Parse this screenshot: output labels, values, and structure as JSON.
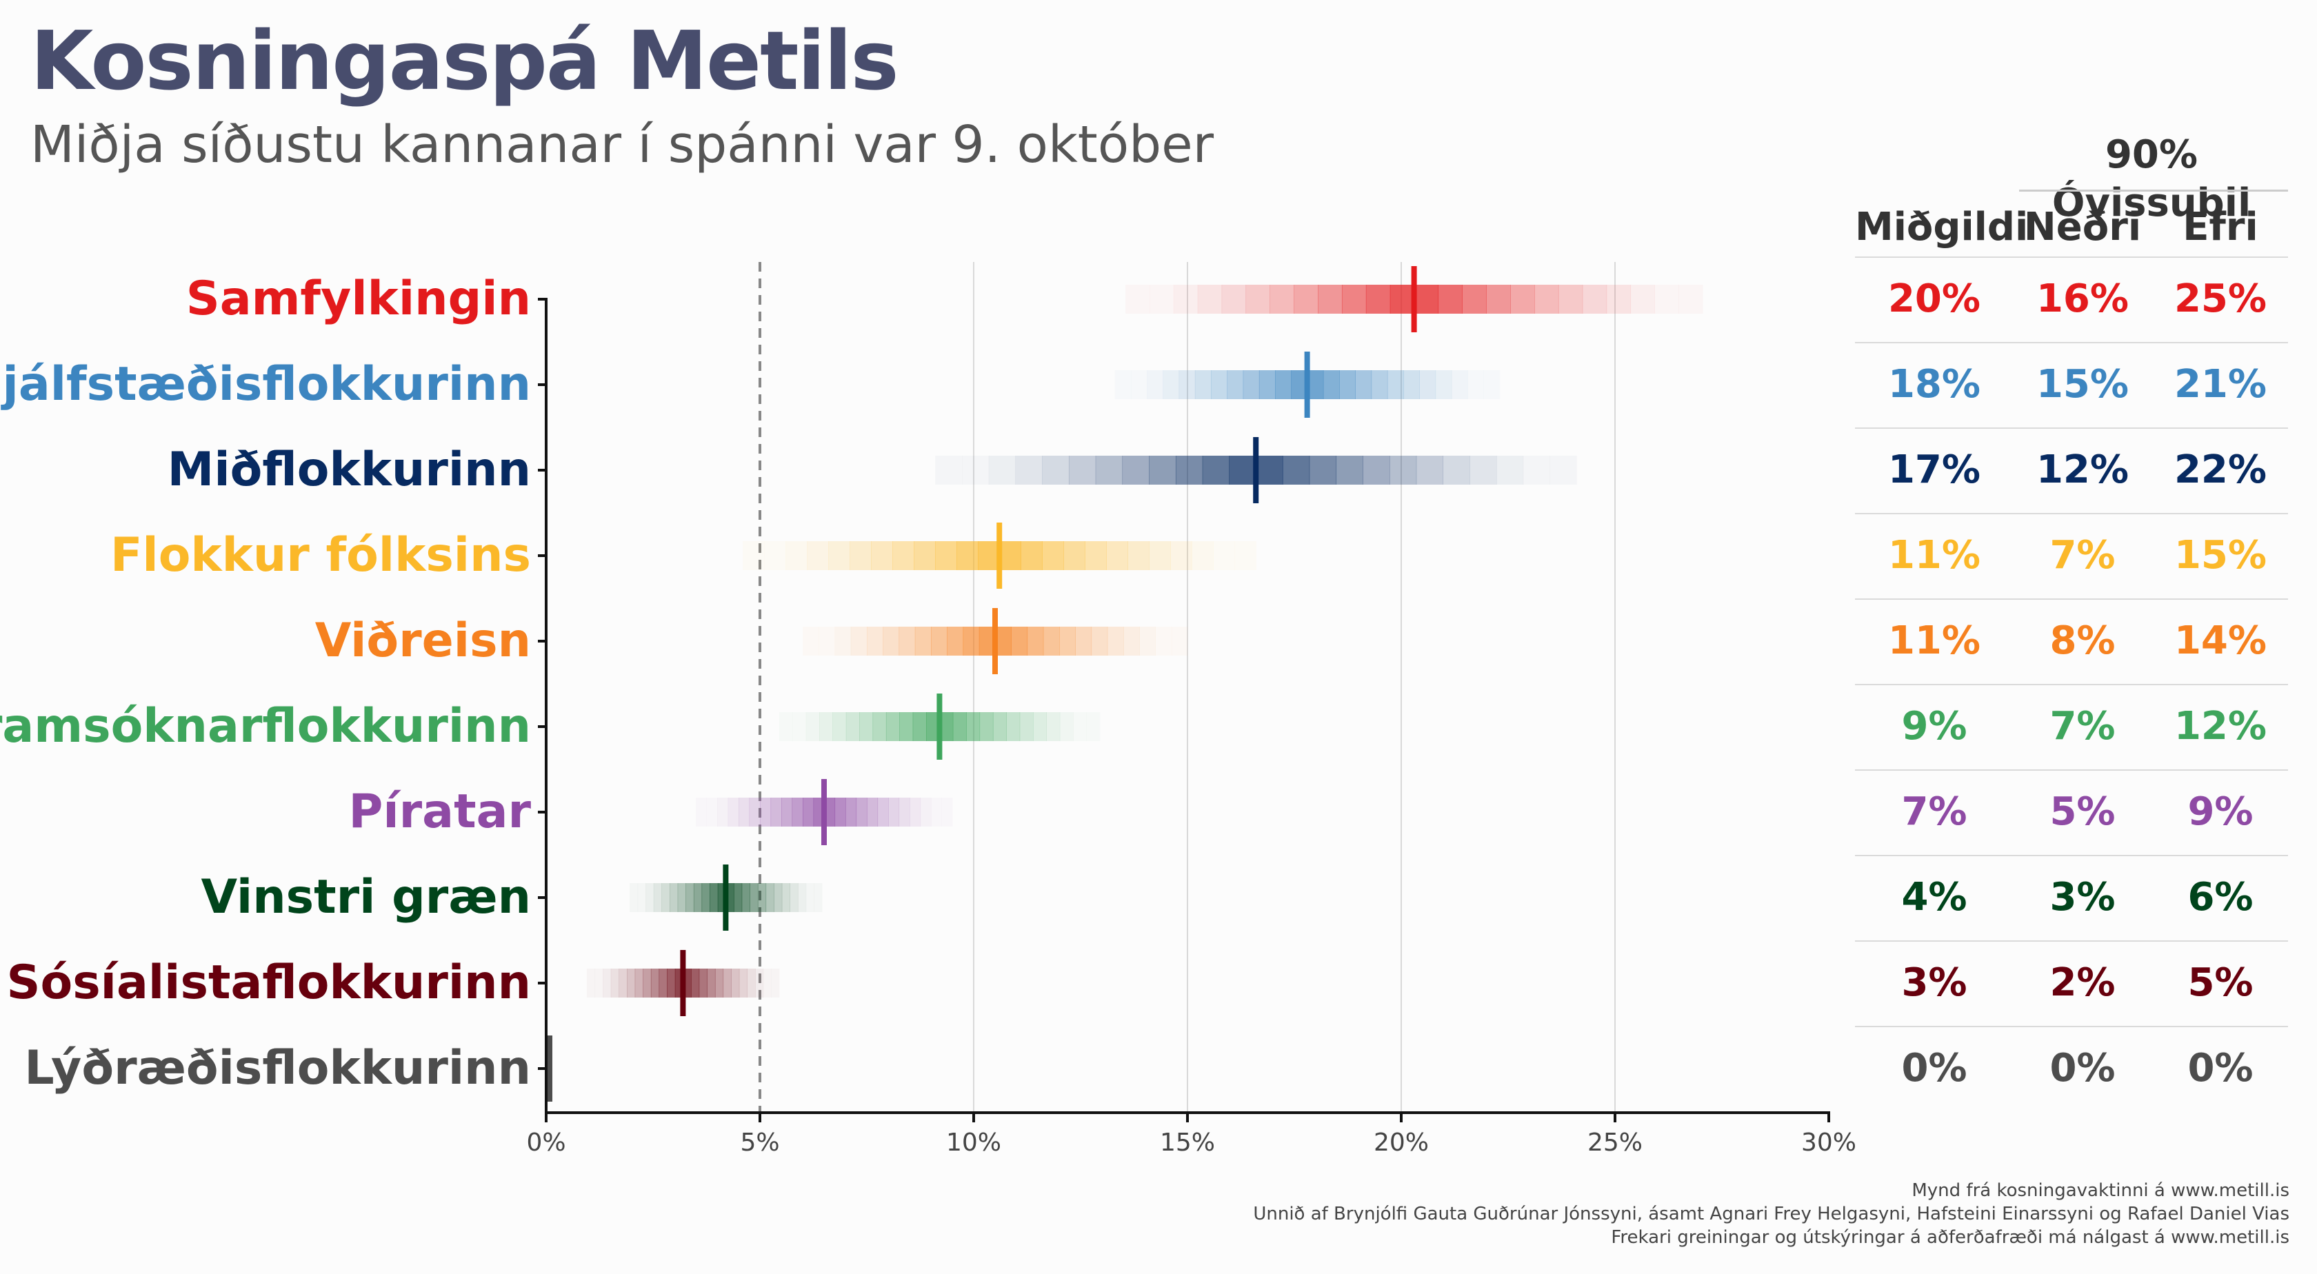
{
  "title": "Kosningaspá Metils",
  "subtitle": "Miðja síðustu kannanar í spánni var 9. október",
  "table": {
    "group_header": "90% Óvissubil",
    "col_median": "Miðgildi",
    "col_lower": "Neðri",
    "col_upper": "Efri"
  },
  "chart_data": {
    "type": "interval",
    "title": "Kosningaspá Metils",
    "xlim": [
      0,
      30
    ],
    "x_ticks": [
      "0%",
      "5%",
      "10%",
      "15%",
      "20%",
      "25%",
      "30%"
    ],
    "threshold": 5,
    "series": [
      {
        "name": "Samfylkingin",
        "color": "#e31a1c",
        "median": 20.3,
        "lower": 16,
        "upper": 25,
        "median_label": "20%",
        "lower_label": "16%",
        "upper_label": "25%"
      },
      {
        "name": "Sjálfstæðisflokkurinn",
        "color": "#3c85c0",
        "median": 17.8,
        "lower": 15,
        "upper": 21,
        "median_label": "18%",
        "lower_label": "15%",
        "upper_label": "21%"
      },
      {
        "name": "Miðflokkurinn",
        "color": "#072a61",
        "median": 16.6,
        "lower": 12,
        "upper": 22,
        "median_label": "17%",
        "lower_label": "12%",
        "upper_label": "22%"
      },
      {
        "name": "Flokkur fólksins",
        "color": "#fbb829",
        "median": 10.6,
        "lower": 7,
        "upper": 15,
        "median_label": "11%",
        "lower_label": "7%",
        "upper_label": "15%"
      },
      {
        "name": "Viðreisn",
        "color": "#f6811f",
        "median": 10.5,
        "lower": 8,
        "upper": 14,
        "median_label": "11%",
        "lower_label": "8%",
        "upper_label": "14%"
      },
      {
        "name": "Framsóknarflokkurinn",
        "color": "#3ea55c",
        "median": 9.2,
        "lower": 7,
        "upper": 12,
        "median_label": "9%",
        "lower_label": "7%",
        "upper_label": "12%"
      },
      {
        "name": "Píratar",
        "color": "#8e4aa4",
        "median": 6.5,
        "lower": 5,
        "upper": 9,
        "median_label": "7%",
        "lower_label": "5%",
        "upper_label": "9%"
      },
      {
        "name": "Vinstri græn",
        "color": "#00441b",
        "median": 4.2,
        "lower": 3,
        "upper": 6,
        "median_label": "4%",
        "lower_label": "3%",
        "upper_label": "6%"
      },
      {
        "name": "Sósíalistaflokkurinn",
        "color": "#67000d",
        "median": 3.2,
        "lower": 2,
        "upper": 5,
        "median_label": "3%",
        "lower_label": "2%",
        "upper_label": "5%"
      },
      {
        "name": "Lýðræðisflokkurinn",
        "color": "#4d4d4d",
        "median": 0,
        "lower": 0,
        "upper": 0,
        "median_label": "0%",
        "lower_label": "0%",
        "upper_label": "0%"
      }
    ]
  },
  "footer": {
    "line1": "Mynd frá kosningavaktinni á www.metill.is",
    "line2": "Unnið af Brynjólfi Gauta Guðrúnar Jónssyni, ásamt Agnari Frey Helgasyni, Hafsteini Einarssyni og Rafael Daniel Vias",
    "line3": "Frekari greiningar og útskýringar á aðferðafræði má nálgast á www.metill.is"
  }
}
